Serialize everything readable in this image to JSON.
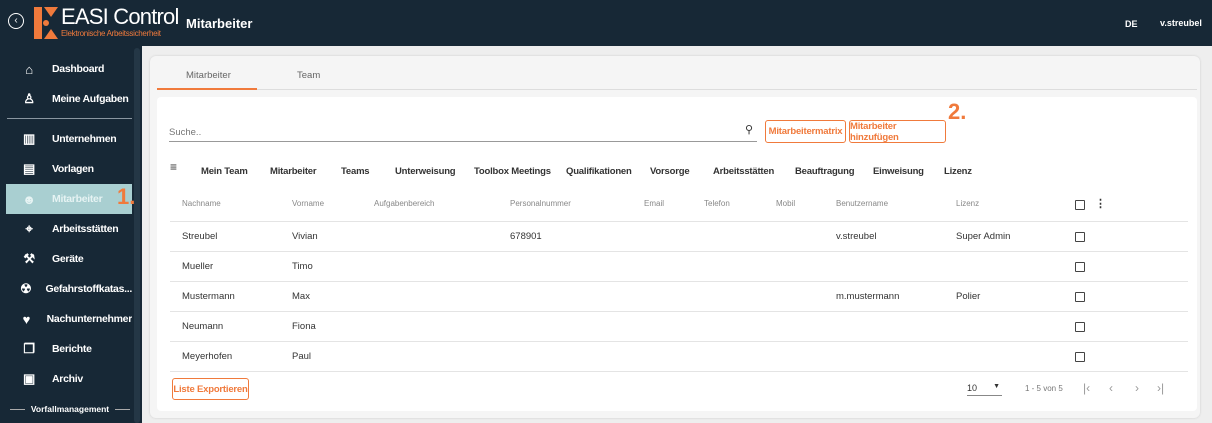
{
  "header": {
    "brand": "EASI Control",
    "tagline": "Elektronische Arbeitssicherheit",
    "page_title": "Mitarbeiter",
    "language": "DE",
    "user": "v.streubel"
  },
  "sidebar": {
    "items": [
      {
        "label": "Dashboard",
        "icon": "home-icon"
      },
      {
        "label": "Meine Aufgaben",
        "icon": "person-icon"
      },
      {
        "label": "Unternehmen",
        "icon": "building-icon"
      },
      {
        "label": "Vorlagen",
        "icon": "inbox-icon"
      },
      {
        "label": "Mitarbeiter",
        "icon": "people-icon",
        "active": true
      },
      {
        "label": "Arbeitsstätten",
        "icon": "location-icon"
      },
      {
        "label": "Geräte",
        "icon": "hammer-icon"
      },
      {
        "label": "Gefahrstoffkatas...",
        "icon": "hazard-icon"
      },
      {
        "label": "Nachunternehmer",
        "icon": "handshake-icon"
      },
      {
        "label": "Berichte",
        "icon": "reports-icon"
      },
      {
        "label": "Archiv",
        "icon": "archive-icon"
      }
    ],
    "section": "Vorfallmanagement"
  },
  "tabs": [
    {
      "label": "Mitarbeiter",
      "active": true
    },
    {
      "label": "Team"
    }
  ],
  "search": {
    "placeholder": "Suche..",
    "value": ""
  },
  "buttons": {
    "matrix": "Mitarbeitermatrix",
    "add": "Mitarbeiter hinzufügen",
    "export": "Liste Exportieren"
  },
  "annotations": {
    "one": "1.",
    "two": "2."
  },
  "filters": [
    "Mein Team",
    "Mitarbeiter",
    "Teams",
    "Unterweisung",
    "Toolbox Meetings",
    "Qualifikationen",
    "Vorsorge",
    "Arbeitsstätten",
    "Beauftragung",
    "Einweisung",
    "Lizenz"
  ],
  "table": {
    "columns": [
      "Nachname",
      "Vorname",
      "Aufgabenbereich",
      "Personalnummer",
      "Email",
      "Telefon",
      "Mobil",
      "Benutzername",
      "Lizenz"
    ],
    "rows": [
      [
        "Streubel",
        "Vivian",
        "",
        "678901",
        "",
        "",
        "",
        "v.streubel",
        "Super Admin"
      ],
      [
        "Mueller",
        "Timo",
        "",
        "",
        "",
        "",
        "",
        "",
        ""
      ],
      [
        "Mustermann",
        "Max",
        "",
        "",
        "",
        "",
        "",
        "m.mustermann",
        "Polier"
      ],
      [
        "Neumann",
        "Fiona",
        "",
        "",
        "",
        "",
        "",
        "",
        ""
      ],
      [
        "Meyerhofen",
        "Paul",
        "",
        "",
        "",
        "",
        "",
        "",
        ""
      ]
    ]
  },
  "pagination": {
    "page_size": "10",
    "range": "1 - 5 von 5"
  },
  "colors": {
    "accent": "#f07a3c",
    "sidebar": "#172836",
    "active": "#a9cfd1"
  }
}
